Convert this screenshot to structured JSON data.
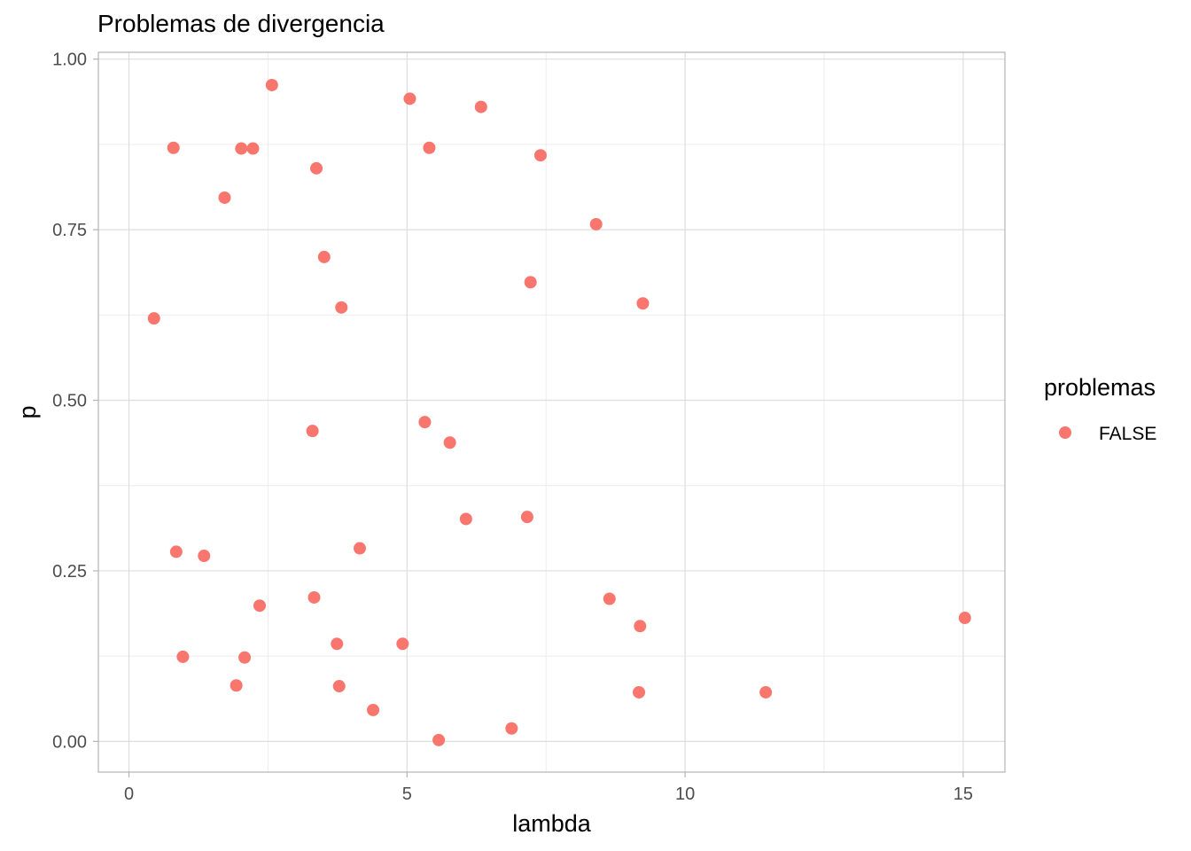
{
  "chart_data": {
    "type": "scatter",
    "title": "Problemas de divergencia",
    "xlabel": "lambda",
    "ylabel": "p",
    "xlim": [
      -0.55,
      15.75
    ],
    "ylim": [
      -0.045,
      1.01
    ],
    "x_ticks": [
      0,
      5,
      10,
      15
    ],
    "x_tick_labels": [
      "0",
      "5",
      "10",
      "15"
    ],
    "y_ticks": [
      0,
      0.25,
      0.5,
      0.75,
      1
    ],
    "y_tick_labels": [
      "0.00",
      "0.25",
      "0.50",
      "0.75",
      "1.00"
    ],
    "grid": true,
    "legend": {
      "title": "problemas",
      "position": "right",
      "entries": [
        {
          "label": "FALSE",
          "color": "#F8766D"
        }
      ]
    },
    "series": [
      {
        "name": "FALSE",
        "color": "#F8766D",
        "points": [
          {
            "x": 0.45,
            "y": 0.62
          },
          {
            "x": 0.8,
            "y": 0.87
          },
          {
            "x": 0.85,
            "y": 0.278
          },
          {
            "x": 0.97,
            "y": 0.124
          },
          {
            "x": 1.35,
            "y": 0.272
          },
          {
            "x": 1.72,
            "y": 0.797
          },
          {
            "x": 1.93,
            "y": 0.082
          },
          {
            "x": 2.02,
            "y": 0.869
          },
          {
            "x": 2.08,
            "y": 0.123
          },
          {
            "x": 2.23,
            "y": 0.869
          },
          {
            "x": 2.35,
            "y": 0.199
          },
          {
            "x": 2.57,
            "y": 0.962
          },
          {
            "x": 3.3,
            "y": 0.455
          },
          {
            "x": 3.33,
            "y": 0.211
          },
          {
            "x": 3.37,
            "y": 0.84
          },
          {
            "x": 3.51,
            "y": 0.71
          },
          {
            "x": 3.74,
            "y": 0.143
          },
          {
            "x": 3.78,
            "y": 0.081
          },
          {
            "x": 3.82,
            "y": 0.636
          },
          {
            "x": 4.15,
            "y": 0.283
          },
          {
            "x": 4.39,
            "y": 0.046
          },
          {
            "x": 4.92,
            "y": 0.143
          },
          {
            "x": 5.05,
            "y": 0.942
          },
          {
            "x": 5.32,
            "y": 0.468
          },
          {
            "x": 5.4,
            "y": 0.87
          },
          {
            "x": 5.57,
            "y": 0.002
          },
          {
            "x": 5.77,
            "y": 0.438
          },
          {
            "x": 6.06,
            "y": 0.326
          },
          {
            "x": 6.33,
            "y": 0.93
          },
          {
            "x": 6.88,
            "y": 0.019
          },
          {
            "x": 7.16,
            "y": 0.329
          },
          {
            "x": 7.22,
            "y": 0.673
          },
          {
            "x": 7.4,
            "y": 0.859
          },
          {
            "x": 8.4,
            "y": 0.758
          },
          {
            "x": 8.64,
            "y": 0.209
          },
          {
            "x": 9.17,
            "y": 0.072
          },
          {
            "x": 9.19,
            "y": 0.169
          },
          {
            "x": 9.24,
            "y": 0.642
          },
          {
            "x": 11.45,
            "y": 0.072
          },
          {
            "x": 15.03,
            "y": 0.181
          }
        ]
      }
    ]
  }
}
